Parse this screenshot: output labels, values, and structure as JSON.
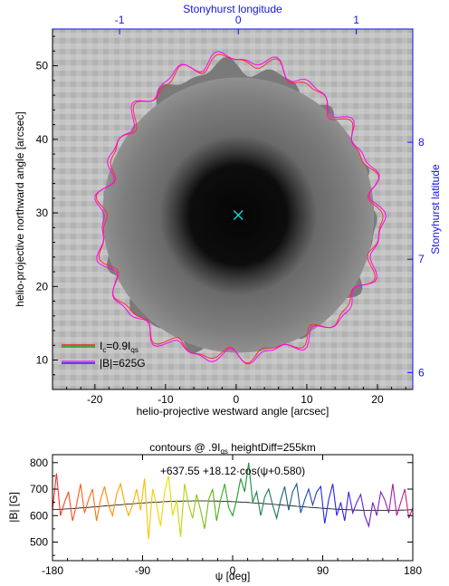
{
  "chart_data": [
    {
      "type": "heatmap",
      "title": "",
      "image": "sunspot continuum intensity (grayscale)",
      "xlabel": "helio-projective westward angle [arcsec]",
      "ylabel": "helio-projective northward angle [arcsec]",
      "top_label": "Stonyhurst longitude",
      "right_label": "Stonyhurst latitude",
      "xlim": [
        -26,
        25
      ],
      "ylim": [
        6,
        55
      ],
      "x_ticks": [
        -20,
        -10,
        0,
        10,
        20
      ],
      "y_ticks": [
        10,
        20,
        30,
        40,
        50
      ],
      "top_ticks": [
        {
          "label": "-1",
          "arcsec": -16.5
        },
        {
          "label": "0",
          "arcsec": 0.3
        },
        {
          "label": "1",
          "arcsec": 17
        }
      ],
      "right_ticks": [
        {
          "label": "6",
          "arcsec": 8.3
        },
        {
          "label": "7",
          "arcsec": 23.7
        },
        {
          "label": "8",
          "arcsec": 39.6
        }
      ],
      "center_marker": {
        "x": 0.3,
        "y": 29.7,
        "color": "#00e5e5"
      },
      "legend": {
        "position": "bottom-left",
        "entries": [
          {
            "label_main": "I",
            "label_sub1": "c",
            "label_tail": "=0.9I",
            "label_sub2": "qs",
            "colors": [
              "#ff0000",
              "#00a000"
            ]
          },
          {
            "label_main": "|B|=625G",
            "colors": [
              "#ff00ff",
              "#0000ff"
            ]
          }
        ]
      },
      "colors": {
        "contour_ic": "#ff3030",
        "contour_b": "#ff00ff",
        "axis_blue": "#1414e6"
      }
    },
    {
      "type": "line",
      "title_main": "contours @ .9I",
      "title_sub": "qs",
      "title_tail": " heightDiff=255km",
      "xlabel": "ψ [deg]",
      "ylabel": "|B| [G]",
      "xlim": [
        -180,
        180
      ],
      "ylim": [
        430,
        830
      ],
      "x_ticks": [
        -180,
        -90,
        0,
        90,
        180
      ],
      "y_ticks": [
        500,
        600,
        700,
        800
      ],
      "fit_formula": "+637.55  +18.12·cos(ψ+0.580)",
      "fit": {
        "offset": 637.55,
        "amplitude": 18.12,
        "phase": 0.58,
        "color": "#000000"
      },
      "series": [
        {
          "x": [
            -180,
            -176,
            -172,
            -168,
            -164,
            -160,
            -156,
            -152,
            -148,
            -144,
            -140,
            -136,
            -132,
            -128,
            -124,
            -120,
            -116,
            -112,
            -108,
            -104,
            -100,
            -96,
            -92,
            -88,
            -84,
            -80,
            -76,
            -72,
            -68,
            -64,
            -60,
            -56,
            -52,
            -48,
            -44,
            -40,
            -36,
            -32,
            -28,
            -24,
            -20,
            -16,
            -12,
            -8,
            -4,
            0,
            4,
            8,
            12,
            16,
            20,
            24,
            28,
            32,
            36,
            40,
            44,
            48,
            52,
            56,
            60,
            64,
            68,
            72,
            76,
            80,
            84,
            88,
            92,
            96,
            100,
            104,
            108,
            112,
            116,
            120,
            124,
            128,
            132,
            136,
            140,
            144,
            148,
            152,
            156,
            160,
            164,
            168,
            172,
            176,
            180
          ],
          "y": [
            620,
            760,
            600,
            650,
            690,
            580,
            640,
            720,
            610,
            660,
            700,
            580,
            660,
            710,
            640,
            600,
            680,
            720,
            650,
            600,
            640,
            700,
            620,
            740,
            510,
            700,
            640,
            560,
            690,
            750,
            600,
            660,
            520,
            720,
            640,
            590,
            680,
            620,
            550,
            660,
            700,
            580,
            660,
            720,
            630,
            600,
            660,
            740,
            690,
            800,
            650,
            690,
            600,
            670,
            700,
            640,
            590,
            660,
            710,
            620,
            690,
            720,
            610,
            660,
            700,
            640,
            690,
            710,
            570,
            660,
            720,
            600,
            650,
            580,
            690,
            610,
            650,
            680,
            600,
            560,
            650,
            600,
            690,
            660,
            610,
            720,
            600,
            650,
            700,
            590,
            630
          ]
        }
      ]
    }
  ]
}
